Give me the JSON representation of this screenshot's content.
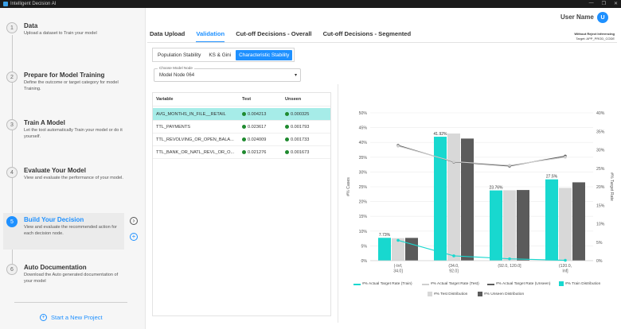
{
  "app": {
    "title": "Intelligent Decision AI",
    "window_controls": [
      "—",
      "❐",
      "✕"
    ]
  },
  "header": {
    "user_name": "User Name",
    "avatar_initial": "U"
  },
  "side_note": {
    "line1": "Without Reject Inferencing",
    "line2": "Target: APP_PROD_CODE"
  },
  "sidebar": {
    "steps": [
      {
        "num": "1",
        "title": "Data",
        "desc": "Upload a dataset to Train your model"
      },
      {
        "num": "2",
        "title": "Prepare for Model Training",
        "desc": "Define the outcome or target category for model Training."
      },
      {
        "num": "3",
        "title": "Train A Model",
        "desc": "Let the tool automatically Train your model or do it yourself."
      },
      {
        "num": "4",
        "title": "Evaluate Your Model",
        "desc": "View and evaluate the performance of your model."
      },
      {
        "num": "5",
        "title": "Build Your Decision",
        "desc": "View and evaluate the recommended action for each decision node."
      },
      {
        "num": "6",
        "title": "Auto Documentation",
        "desc": "Download the Auto generated documentation of your model"
      }
    ],
    "new_project_label": "Start a New Project"
  },
  "main_tabs": [
    "Data Upload",
    "Validation",
    "Cut-off Decisions - Overall",
    "Cut-off Decisions - Segmented"
  ],
  "sub_tabs": [
    "Population Stability",
    "KS & Gini",
    "Characteristic Stability"
  ],
  "model_select": {
    "label": "Choose Model Node",
    "value": "Model Node 064"
  },
  "var_table": {
    "headers": [
      "Variable",
      "Test",
      "Unseen"
    ],
    "rows": [
      {
        "variable": "AVG_MONTHS_IN_FILE__RETAIL",
        "test": "0.004213",
        "unseen": "0.000325"
      },
      {
        "variable": "TTL_PAYMENTS",
        "test": "0.023617",
        "unseen": "0.001793"
      },
      {
        "variable": "TTL_REVOLVING_OR_OPEN_BALA...",
        "test": "0.024009",
        "unseen": "0.001733"
      },
      {
        "variable": "TTL_BANK_OR_NATL_REVL_OR_O...",
        "test": "0.021276",
        "unseen": "0.001673"
      }
    ]
  },
  "colors": {
    "accent": "#1e90ff",
    "highlight_row": "#a6ece8",
    "status_dot": "#1f8a2f",
    "train": "#18d8cf",
    "test": "#d8d8d8",
    "unseen": "#5b5b5b",
    "rate_train": "#18d8cf",
    "rate_test": "#cfcfcf",
    "rate_unseen": "#5b5b5b"
  },
  "chart_data": {
    "type": "bar",
    "categories": [
      "(-Inf, 34.0]",
      "(34.0, 92.0]",
      "(92.0, 120.0]",
      "(120.0, Inf]"
    ],
    "category_labels": [
      [
        "(-Inf,",
        "34.0]"
      ],
      [
        "(34.0,",
        "92.0]"
      ],
      [
        "(92.0, 120.0]"
      ],
      [
        "(120.0,",
        "Inf]"
      ]
    ],
    "series": [
      {
        "name": "#% Train Distribution",
        "values": [
          7.73,
          41.92,
          23.76,
          27.5
        ]
      },
      {
        "name": "#% Test Distribution",
        "values": [
          7.6,
          43.0,
          23.8,
          24.6
        ]
      },
      {
        "name": "#% Unseen Distribution",
        "values": [
          7.7,
          41.3,
          23.9,
          26.5
        ]
      }
    ],
    "data_labels": [
      "7.73%",
      "41.92%",
      "23.76%",
      "27.5%"
    ],
    "lines": [
      {
        "name": "#% Actual Target Rate (Train)",
        "values": [
          5.5,
          1.3,
          0.5,
          0.1
        ]
      },
      {
        "name": "#% Actual Target Rate (Test)",
        "values": [
          31.0,
          26.8,
          25.8,
          28.0
        ]
      },
      {
        "name": "#% Actual Target Rate (Unseen)",
        "values": [
          31.2,
          26.7,
          25.6,
          28.3
        ]
      }
    ],
    "ylabel": "#% Cases",
    "y2label": "#% Target Rate",
    "ylim": [
      0,
      50
    ],
    "y2lim": [
      0,
      40
    ],
    "yticks": [
      "0%",
      "5%",
      "10%",
      "15%",
      "20%",
      "25%",
      "30%",
      "35%",
      "40%",
      "45%",
      "50%"
    ],
    "y2ticks": [
      "0%",
      "5%",
      "10%",
      "15%",
      "20%",
      "25%",
      "30%",
      "35%",
      "40%"
    ],
    "grid": true
  }
}
